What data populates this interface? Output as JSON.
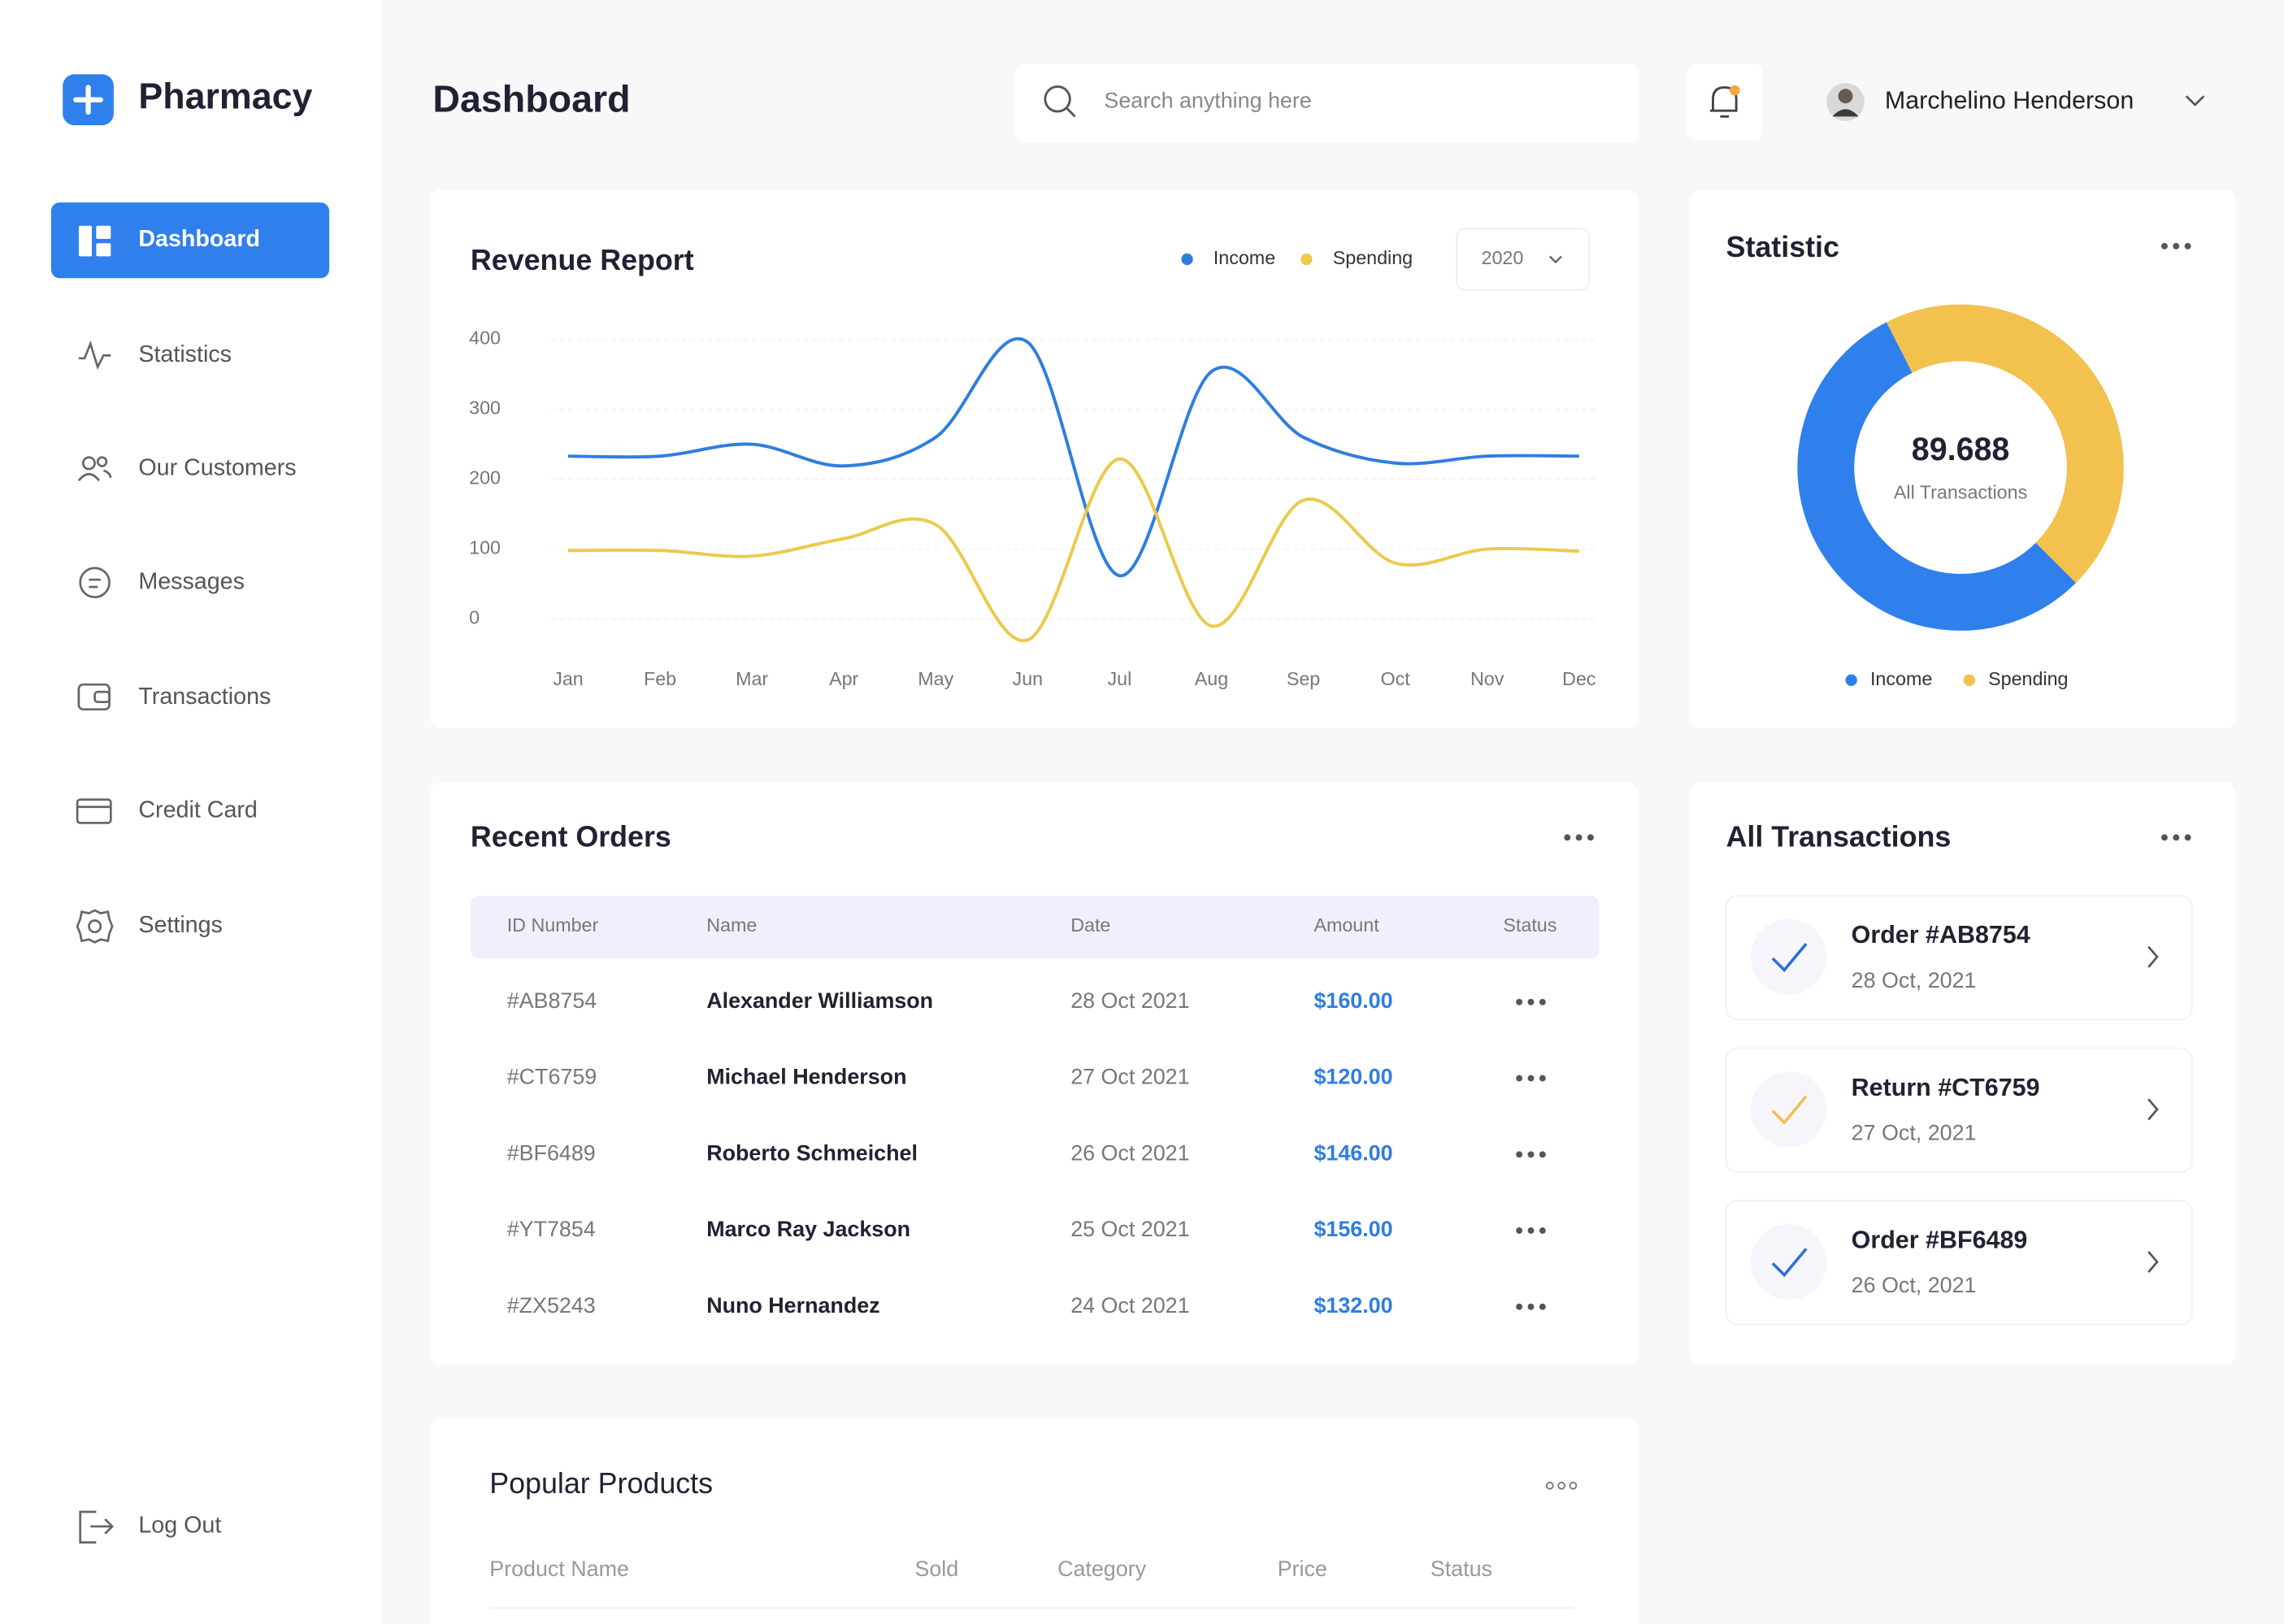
{
  "sidebar": {
    "brand": "Pharmacy",
    "nav": [
      "Dashboard",
      "Statistics",
      "Our Customers",
      "Messages",
      "Transactions",
      "Credit Card",
      "Settings"
    ],
    "logout": "Log Out"
  },
  "header": {
    "title": "Dashboard",
    "search_placeholder": "Search anything here",
    "user": "Marchelino Henderson"
  },
  "revenue_filter": "2020",
  "chart_data": [
    {
      "type": "line",
      "title": "Revenue Report",
      "categories": [
        "Jan",
        "Feb",
        "Mar",
        "Apr",
        "May",
        "Jun",
        "Jul",
        "Aug",
        "Sep",
        "Oct",
        "Nov",
        "Dec"
      ],
      "series": [
        {
          "name": "Income",
          "color": "#2f7de1",
          "values": [
            233,
            233,
            250,
            219,
            260,
            396,
            62,
            354,
            260,
            223,
            233,
            233
          ]
        },
        {
          "name": "Spending",
          "color": "#ecc94b",
          "values": [
            98,
            98,
            90,
            115,
            135,
            -30,
            229,
            -10,
            170,
            80,
            100,
            97
          ]
        }
      ],
      "ylim": [
        -40,
        440
      ],
      "yticks": [
        0,
        100,
        200,
        300,
        400
      ],
      "grid": true
    },
    {
      "type": "pie",
      "title": "Statistic",
      "center_value": "89.688",
      "center_label": "All Transactions",
      "categories": [
        "Income",
        "Spending"
      ],
      "values": [
        55,
        45
      ],
      "colors": [
        "#2f80ed",
        "#f2c14e"
      ],
      "start_angle": 135
    }
  ],
  "recent_orders": {
    "title": "Recent Orders",
    "columns": [
      "ID Number",
      "Name",
      "Date",
      "Amount",
      "Status"
    ],
    "rows": [
      [
        "#AB8754",
        "Alexander Williamson",
        "28 Oct 2021",
        "$160.00"
      ],
      [
        "#CT6759",
        "Michael Henderson",
        "27 Oct 2021",
        "$120.00"
      ],
      [
        "#BF6489",
        "Roberto Schmeichel",
        "26 Oct 2021",
        "$146.00"
      ],
      [
        "#YT7854",
        "Marco Ray Jackson",
        "25 Oct 2021",
        "$156.00"
      ],
      [
        "#ZX5243",
        "Nuno Hernandez",
        "24 Oct 2021",
        "$132.00"
      ]
    ]
  },
  "all_transactions": {
    "title": "All Transactions",
    "items": [
      {
        "title": "Order #AB8754",
        "date": "28 Oct, 2021",
        "color": "#2f6fd6"
      },
      {
        "title": "Return #CT6759",
        "date": "27 Oct, 2021",
        "color": "#f2c14e"
      },
      {
        "title": "Order #BF6489",
        "date": "26 Oct, 2021",
        "color": "#2f6fd6"
      }
    ]
  },
  "popular_products": {
    "title": "Popular Products",
    "columns": [
      "Product Name",
      "Sold",
      "Category",
      "Price",
      "Status"
    ]
  }
}
